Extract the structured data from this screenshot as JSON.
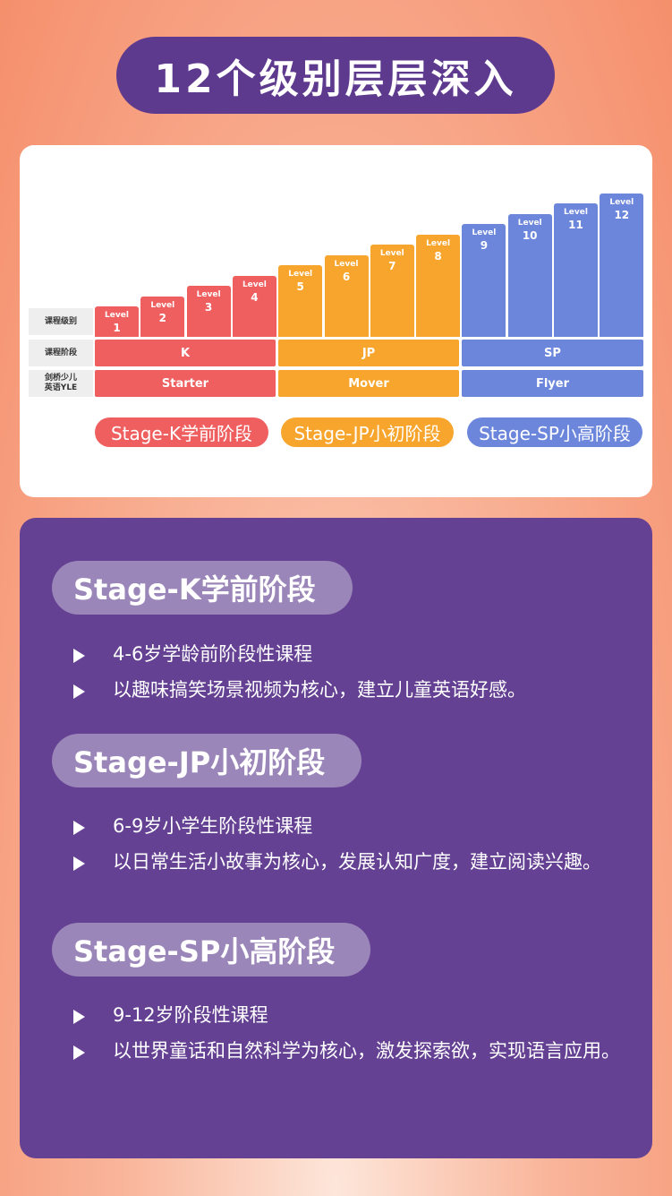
{
  "title": "12个级别层层深入",
  "chart": {
    "row_labels": [
      {
        "line1": "课程级别",
        "line2": ""
      },
      {
        "line1": "课程阶段",
        "line2": ""
      },
      {
        "line1": "剑桥少儿",
        "line2": "英语YLE"
      }
    ],
    "level_word": "Level",
    "levels": [
      "1",
      "2",
      "3",
      "4",
      "5",
      "6",
      "7",
      "8",
      "9",
      "10",
      "11",
      "12"
    ],
    "level_colors": [
      "#ef5f5f",
      "#ef5f5f",
      "#ef5f5f",
      "#ef5f5f",
      "#f7a52c",
      "#f7a52c",
      "#f7a52c",
      "#f7a52c",
      "#6b86db",
      "#6b86db",
      "#6b86db",
      "#6b86db"
    ],
    "stages": [
      "K",
      "JP",
      "SP"
    ],
    "yle": [
      "Starter",
      "Mover",
      "Flyer"
    ],
    "legend": [
      "Stage-K学前阶段",
      "Stage-JP小初阶段",
      "Stage-SP小高阶段"
    ]
  },
  "sections": [
    {
      "title": "Stage-K学前阶段",
      "bullets": [
        "4-6岁学龄前阶段性课程",
        "以趣味搞笑场景视频为核心，建立儿童英语好感。"
      ]
    },
    {
      "title": "Stage-JP小初阶段",
      "bullets": [
        "6-9岁小学生阶段性课程",
        "以日常生活小故事为核心，发展认知广度，建立阅读兴趣。"
      ]
    },
    {
      "title": "Stage-SP小高阶段",
      "bullets": [
        "9-12岁阶段性课程",
        "以世界童话和自然科学为核心，激发探索欲，实现语言应用。"
      ]
    }
  ],
  "colors": {
    "red": "#ef5f5f",
    "orange": "#f7a52c",
    "blue": "#6b86db",
    "purple": "#654193"
  }
}
